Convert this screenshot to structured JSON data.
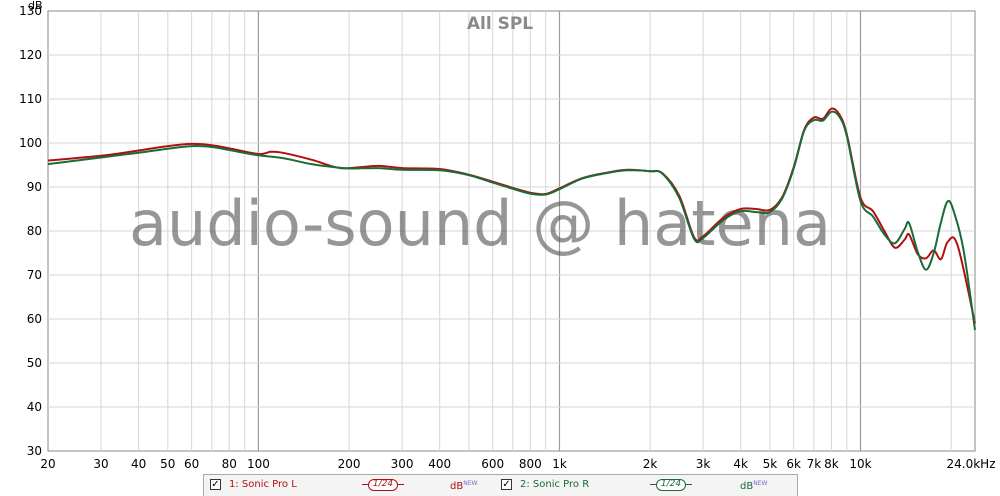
{
  "chart_data": {
    "type": "line",
    "title": "All SPL",
    "ylabel": "dB",
    "xlabel": "",
    "x_scale": "log",
    "xlim": [
      20,
      24000
    ],
    "ylim": [
      30,
      130
    ],
    "grid": true,
    "x_ticks": [
      {
        "v": 20,
        "label": "20"
      },
      {
        "v": 30,
        "label": "30"
      },
      {
        "v": 40,
        "label": "40"
      },
      {
        "v": 50,
        "label": "50"
      },
      {
        "v": 60,
        "label": "60"
      },
      {
        "v": 80,
        "label": "80"
      },
      {
        "v": 100,
        "label": "100"
      },
      {
        "v": 200,
        "label": "200"
      },
      {
        "v": 300,
        "label": "300"
      },
      {
        "v": 400,
        "label": "400"
      },
      {
        "v": 600,
        "label": "600"
      },
      {
        "v": 800,
        "label": "800"
      },
      {
        "v": 1000,
        "label": "1k"
      },
      {
        "v": 2000,
        "label": "2k"
      },
      {
        "v": 3000,
        "label": "3k"
      },
      {
        "v": 4000,
        "label": "4k"
      },
      {
        "v": 5000,
        "label": "5k"
      },
      {
        "v": 6000,
        "label": "6k"
      },
      {
        "v": 7000,
        "label": "7k"
      },
      {
        "v": 8000,
        "label": "8k"
      },
      {
        "v": 10000,
        "label": "10k"
      },
      {
        "v": 24000,
        "label": "24.0kHz"
      }
    ],
    "y_ticks": [
      30,
      40,
      50,
      60,
      70,
      80,
      90,
      100,
      110,
      120,
      130
    ],
    "series": [
      {
        "name": "1: Sonic Pro L",
        "color": "#b01010",
        "smoothing": "1/24",
        "unit": "dB",
        "unit_badge": "NEW",
        "points": [
          [
            20,
            96
          ],
          [
            30,
            97.1
          ],
          [
            40,
            98.3
          ],
          [
            50,
            99.3
          ],
          [
            60,
            99.8
          ],
          [
            70,
            99.5
          ],
          [
            80,
            98.8
          ],
          [
            100,
            97.5
          ],
          [
            110,
            98
          ],
          [
            120,
            97.8
          ],
          [
            150,
            96.2
          ],
          [
            180,
            94.5
          ],
          [
            200,
            94.3
          ],
          [
            250,
            94.8
          ],
          [
            300,
            94.3
          ],
          [
            400,
            94.1
          ],
          [
            500,
            92.8
          ],
          [
            600,
            91.2
          ],
          [
            700,
            89.8
          ],
          [
            800,
            88.7
          ],
          [
            900,
            88.4
          ],
          [
            1000,
            89.7
          ],
          [
            1200,
            92.1
          ],
          [
            1500,
            93.5
          ],
          [
            1700,
            93.9
          ],
          [
            2000,
            93.6
          ],
          [
            2200,
            93.1
          ],
          [
            2500,
            88
          ],
          [
            2800,
            78.6
          ],
          [
            3000,
            78.8
          ],
          [
            3500,
            83
          ],
          [
            4000,
            85
          ],
          [
            4500,
            85
          ],
          [
            5000,
            84.8
          ],
          [
            5500,
            87.8
          ],
          [
            6000,
            94.5
          ],
          [
            6500,
            103
          ],
          [
            7000,
            105.8
          ],
          [
            7500,
            105.5
          ],
          [
            8000,
            107.8
          ],
          [
            8500,
            106.5
          ],
          [
            9000,
            102
          ],
          [
            10000,
            87.6
          ],
          [
            11000,
            84.5
          ],
          [
            12000,
            80
          ],
          [
            13000,
            76.2
          ],
          [
            14000,
            78
          ],
          [
            14500,
            79.2
          ],
          [
            15500,
            74.7
          ],
          [
            16500,
            73.8
          ],
          [
            17500,
            75.6
          ],
          [
            18500,
            73.6
          ],
          [
            19500,
            77.6
          ],
          [
            21000,
            76.8
          ],
          [
            24000,
            59
          ]
        ]
      },
      {
        "name": "2: Sonic Pro R",
        "color": "#1a6b3a",
        "smoothing": "1/24",
        "unit": "dB",
        "unit_badge": "NEW",
        "points": [
          [
            20,
            95.2
          ],
          [
            30,
            96.7
          ],
          [
            40,
            97.8
          ],
          [
            50,
            98.7
          ],
          [
            60,
            99.3
          ],
          [
            70,
            99.1
          ],
          [
            80,
            98.4
          ],
          [
            100,
            97.2
          ],
          [
            120,
            96.6
          ],
          [
            150,
            95.2
          ],
          [
            180,
            94.5
          ],
          [
            200,
            94.2
          ],
          [
            250,
            94.3
          ],
          [
            300,
            93.9
          ],
          [
            400,
            93.8
          ],
          [
            500,
            92.7
          ],
          [
            600,
            91
          ],
          [
            700,
            89.6
          ],
          [
            800,
            88.5
          ],
          [
            900,
            88.3
          ],
          [
            1000,
            89.5
          ],
          [
            1200,
            92
          ],
          [
            1500,
            93.4
          ],
          [
            1700,
            93.8
          ],
          [
            2000,
            93.6
          ],
          [
            2200,
            93
          ],
          [
            2500,
            87.5
          ],
          [
            2800,
            78.2
          ],
          [
            3000,
            78.4
          ],
          [
            3500,
            82.5
          ],
          [
            4000,
            84.5
          ],
          [
            4500,
            84.3
          ],
          [
            5000,
            84.3
          ],
          [
            5500,
            87.5
          ],
          [
            6000,
            94.2
          ],
          [
            6500,
            102.8
          ],
          [
            7000,
            105.2
          ],
          [
            7500,
            105.1
          ],
          [
            8000,
            107.1
          ],
          [
            8500,
            106
          ],
          [
            9000,
            101.6
          ],
          [
            10000,
            86.8
          ],
          [
            11000,
            83.3
          ],
          [
            12000,
            79.2
          ],
          [
            13000,
            77.2
          ],
          [
            14000,
            80.4
          ],
          [
            14500,
            81.8
          ],
          [
            15500,
            75.2
          ],
          [
            16500,
            71.2
          ],
          [
            17500,
            75
          ],
          [
            18500,
            82
          ],
          [
            19500,
            86.8
          ],
          [
            20500,
            84
          ],
          [
            22000,
            75.6
          ],
          [
            24000,
            57.5
          ]
        ]
      }
    ]
  },
  "watermark": "audio-sound @ hatena",
  "legend": {
    "check_mark": "✓",
    "items": [
      {
        "label": "1: Sonic Pro L",
        "smoothing": "1/24",
        "unit": "dB",
        "badge": "NEW",
        "color": "#b01010"
      },
      {
        "label": "2: Sonic Pro R",
        "smoothing": "1/24",
        "unit": "dB",
        "badge": "NEW",
        "color": "#1a6b3a"
      }
    ]
  }
}
